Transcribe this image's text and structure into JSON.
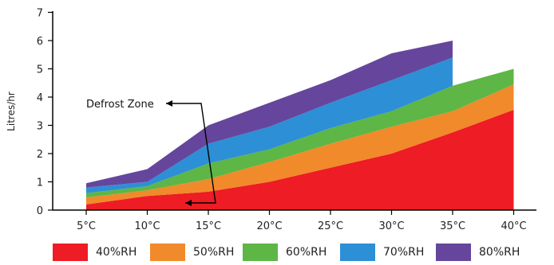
{
  "chart_data": {
    "type": "area",
    "x": [
      "5°C",
      "10°C",
      "15°C",
      "20°C",
      "25°C",
      "30°C",
      "35°C",
      "40°C"
    ],
    "ylabel": "Litres/hr",
    "ylim": [
      0,
      7
    ],
    "yticks": [
      0,
      1,
      2,
      3,
      4,
      5,
      6,
      7
    ],
    "stacked": true,
    "series": [
      {
        "name": "40%RH",
        "color": "#ee1c24",
        "values": [
          0.2,
          0.5,
          0.65,
          1.0,
          1.5,
          2.0,
          2.75,
          3.55
        ]
      },
      {
        "name": "50%RH",
        "color": "#f18a2a",
        "values": [
          0.25,
          0.2,
          0.45,
          0.7,
          0.85,
          0.95,
          0.75,
          0.9
        ]
      },
      {
        "name": "60%RH",
        "color": "#5db646",
        "values": [
          0.15,
          0.15,
          0.55,
          0.45,
          0.55,
          0.55,
          0.9,
          0.55
        ]
      },
      {
        "name": "70%RH",
        "color": "#2d8fd6",
        "values": [
          0.2,
          0.15,
          0.7,
          0.8,
          0.9,
          1.1,
          1.0,
          null
        ]
      },
      {
        "name": "80%RH",
        "color": "#65469c",
        "values": [
          0.15,
          0.45,
          0.65,
          0.85,
          0.8,
          0.95,
          0.6,
          null
        ]
      }
    ],
    "annotations": [
      {
        "text": "Defrost Zone",
        "x_range": [
          "5°C",
          "15°C"
        ],
        "y": 3.75
      }
    ],
    "legend": "bottom"
  }
}
